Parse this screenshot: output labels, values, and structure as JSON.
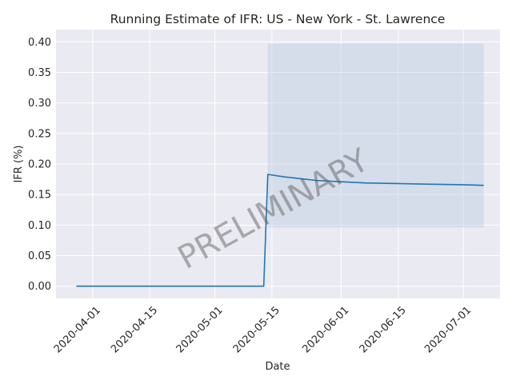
{
  "chart_data": {
    "type": "line",
    "title": "Running Estimate of IFR: US - New York - St. Lawrence",
    "xlabel": "Date",
    "ylabel": "IFR (%)",
    "watermark": "PRELIMINARY",
    "x_range": [
      "2020-03-23",
      "2020-07-10"
    ],
    "ylim": [
      -0.02,
      0.42
    ],
    "x_ticks": [
      "2020-04-01",
      "2020-04-15",
      "2020-05-01",
      "2020-05-15",
      "2020-06-01",
      "2020-06-15",
      "2020-07-01"
    ],
    "y_ticks": [
      "0.00",
      "0.05",
      "0.10",
      "0.15",
      "0.20",
      "0.25",
      "0.30",
      "0.35",
      "0.40"
    ],
    "grid": true,
    "colors": {
      "background": "#eaeaf2",
      "grid": "#ffffff",
      "line": "#1f77b4",
      "band": "#b0c4de"
    },
    "series": [
      {
        "x": [
          "2020-03-28",
          "2020-04-15",
          "2020-05-01",
          "2020-05-13",
          "2020-05-14",
          "2020-05-18",
          "2020-05-22",
          "2020-05-26",
          "2020-06-01",
          "2020-06-07",
          "2020-06-15",
          "2020-06-22",
          "2020-07-01",
          "2020-07-06"
        ],
        "y": [
          0.0,
          0.0,
          0.0,
          0.0,
          0.183,
          0.179,
          0.176,
          0.173,
          0.171,
          0.169,
          0.168,
          0.167,
          0.166,
          0.165
        ]
      }
    ],
    "confidence_band": {
      "x_start": "2020-05-14",
      "x_end": "2020-07-06",
      "lower": 0.096,
      "upper": 0.397
    }
  }
}
